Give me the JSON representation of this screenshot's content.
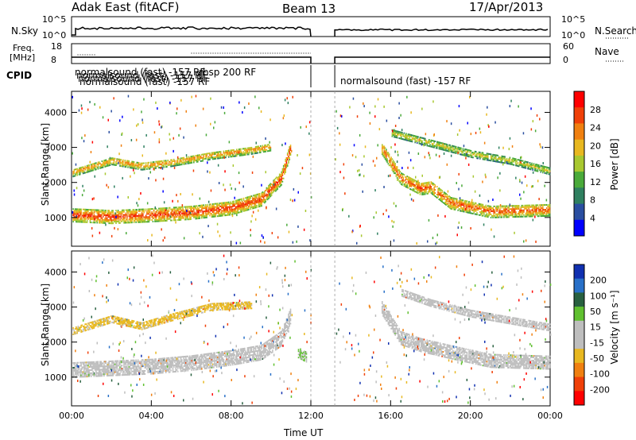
{
  "header": {
    "station": "Adak East (fitACF)",
    "beam": "Beam 13",
    "date": "17/Apr/2013"
  },
  "strips": {
    "nsky_label": "N.Sky",
    "nsearch_label": "N.Search",
    "nsky_ticks": [
      "10^5",
      "10^0"
    ],
    "nsearch_ticks": [
      "10^5",
      "10^0"
    ],
    "freq_label_line1": "Freq.",
    "freq_label_line2": "[MHz]",
    "freq_ticks": [
      "18",
      "8"
    ],
    "nave_label": "Nave",
    "nave_ticks": [
      "60",
      "0"
    ],
    "cpid_label": "CPID",
    "cpid_texts": [
      "normalsound (fast) -157 RF",
      "normalsound (fast) -157 RF",
      "normalsound (fast) -157 RF",
      "normalsound (fast) -157 RF",
      "rbsp 200 RF",
      "normalsound (fast) -157 RF"
    ]
  },
  "colors": {
    "power_scale": [
      "#0000ff",
      "#2a4ea0",
      "#2f8060",
      "#4aaa3a",
      "#a8c830",
      "#e8b820",
      "#f08010",
      "#f04008",
      "#ff0000"
    ],
    "velocity_scale": [
      "#1030b0",
      "#2870c8",
      "#286040",
      "#60c030",
      "#bebebe",
      "#bebebe",
      "#e8b820",
      "#f08010",
      "#f04008",
      "#ff0000"
    ],
    "ground_scatter": "#bebebe"
  },
  "chart_data": [
    {
      "type": "heatmap",
      "title": "Power",
      "xlabel": "Time UT",
      "ylabel": "Slant Range [km]",
      "x_ticks": [
        "00:00",
        "04:00",
        "08:00",
        "12:00",
        "16:00",
        "20:00",
        "00:00"
      ],
      "y_ticks": [
        "1000",
        "2000",
        "3000",
        "4000"
      ],
      "xlim_hours": [
        0,
        24
      ],
      "ylim_km": [
        180,
        4600
      ],
      "colorbar": {
        "label": "Power [dB]",
        "ticks": [
          "28",
          "24",
          "20",
          "16",
          "12",
          "8",
          "4"
        ],
        "range": [
          0,
          30
        ]
      },
      "data_gap_hours": [
        12.0,
        13.2
      ],
      "echo_bands": [
        {
          "name": "",
          "t": [
            0,
            2,
            4,
            6,
            8,
            9.5,
            10.5,
            11
          ],
          "range_km": [
            1050,
            1000,
            1050,
            1120,
            1250,
            1500,
            2100,
            3000
          ],
          "width_km": 380,
          "power_db": 28
        },
        {
          "name": "",
          "t": [
            0,
            2,
            3.5,
            5,
            7,
            9,
            10
          ],
          "range_km": [
            2250,
            2600,
            2450,
            2550,
            2750,
            2900,
            3000
          ],
          "width_km": 220,
          "power_db": 23
        },
        {
          "name": "",
          "t": [
            15.5,
            16.5,
            17.5,
            18,
            19,
            21,
            24
          ],
          "range_km": [
            3000,
            2100,
            1800,
            1850,
            1400,
            1150,
            1200
          ],
          "width_km": 350,
          "power_db": 26
        },
        {
          "name": "",
          "t": [
            16,
            18,
            20,
            22,
            24
          ],
          "range_km": [
            3400,
            3100,
            2800,
            2600,
            2300
          ],
          "width_km": 200,
          "power_db": 18
        }
      ]
    },
    {
      "type": "heatmap",
      "title": "Velocity",
      "xlabel": "Time UT",
      "ylabel": "Slant Range [km]",
      "x_ticks": [
        "00:00",
        "04:00",
        "08:00",
        "12:00",
        "16:00",
        "20:00",
        "00:00"
      ],
      "y_ticks": [
        "1000",
        "2000",
        "3000",
        "4000"
      ],
      "xlim_hours": [
        0,
        24
      ],
      "ylim_km": [
        180,
        4600
      ],
      "colorbar": {
        "label": "Velocity [m s⁻¹]",
        "ticks": [
          "200",
          "100",
          "50",
          "15",
          "-15",
          "-50",
          "-100",
          "-200"
        ],
        "range": [
          -250,
          250
        ]
      },
      "data_gap_hours": [
        12.0,
        13.2
      ],
      "echo_bands": [
        {
          "name": "",
          "t": [
            0,
            2,
            4,
            6,
            8,
            9.5,
            10.5,
            11
          ],
          "range_km": [
            1200,
            1250,
            1300,
            1400,
            1550,
            1700,
            2100,
            2800
          ],
          "width_km": 450,
          "velocity": 0
        },
        {
          "name": "",
          "t": [
            0,
            2,
            3.5,
            5,
            7,
            9
          ],
          "range_km": [
            2300,
            2650,
            2450,
            2700,
            3000,
            3050
          ],
          "width_km": 220,
          "velocity": -70
        },
        {
          "name": "",
          "t": [
            15.5,
            16.5,
            17.5,
            19,
            21,
            24
          ],
          "range_km": [
            3000,
            2100,
            1900,
            1700,
            1450,
            1400
          ],
          "width_km": 380,
          "velocity": 0
        },
        {
          "name": "",
          "t": [
            16.5,
            18,
            20,
            22,
            24
          ],
          "range_km": [
            3400,
            3100,
            2800,
            2600,
            2400
          ],
          "width_km": 200,
          "velocity": 10
        },
        {
          "name": "",
          "t": [
            11.3,
            11.8
          ],
          "range_km": [
            1700,
            1550
          ],
          "width_km": 300,
          "velocity": 60
        }
      ]
    }
  ]
}
